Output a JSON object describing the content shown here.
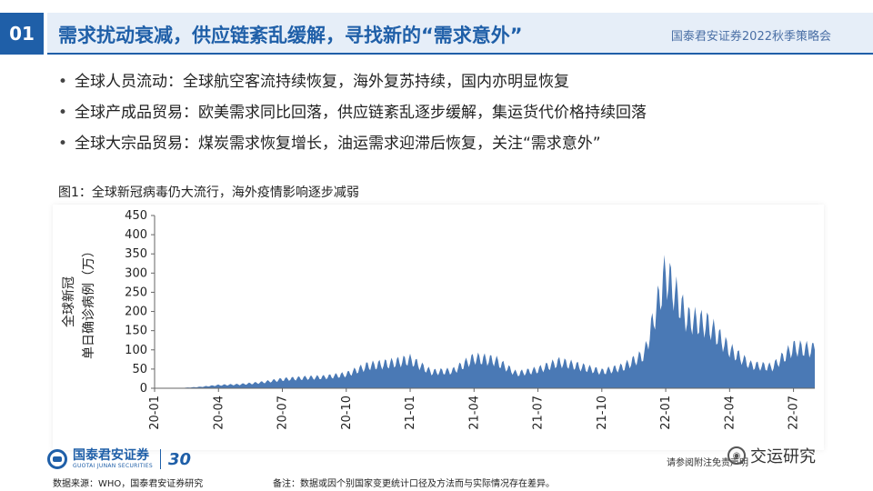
{
  "header": {
    "section_number": "01",
    "title": "需求扰动衰减，供应链紊乱缓解，寻找新的“需求意外”",
    "brand": "国泰君安证券2022秋季策略会"
  },
  "bullets": [
    "全球人员流动：全球航空客流持续恢复，海外复苏持续，国内亦明显恢复",
    "全球产成品贸易：欧美需求同比回落，供应链紊乱逐步缓解，集运货代价格持续回落",
    "全球大宗品贸易：煤炭需求恢复增长，油运需求迎滞后恢复，关注“需求意外”"
  ],
  "figure_title": "图1：全球新冠病毒仍大流行，海外疫情影响逐步减弱",
  "chart_data": {
    "type": "area",
    "color": "#4a79b5",
    "ylabel_line1": "全球新冠",
    "ylabel_line2": "单日确诊病例（万）",
    "ylim": [
      0,
      450
    ],
    "yticks": [
      0,
      50,
      100,
      150,
      200,
      250,
      300,
      350,
      400,
      450
    ],
    "x_start": "2020-01",
    "x_end": "2022-08",
    "xticks": [
      "20-01",
      "20-04",
      "20-07",
      "20-10",
      "21-01",
      "21-04",
      "21-07",
      "21-10",
      "22-01",
      "22-04",
      "22-07"
    ],
    "x": [
      "2020-01",
      "2020-02",
      "2020-03",
      "2020-04",
      "2020-05",
      "2020-06",
      "2020-07",
      "2020-08",
      "2020-09",
      "2020-10",
      "2020-11",
      "2020-12",
      "2021-01",
      "2021-02",
      "2021-03",
      "2021-04",
      "2021-05",
      "2021-06",
      "2021-07",
      "2021-08",
      "2021-09",
      "2021-10",
      "2021-11",
      "2021-12",
      "2022-01",
      "2022-02",
      "2022-03",
      "2022-04",
      "2022-05",
      "2022-06",
      "2022-07",
      "2022-08"
    ],
    "values": [
      0,
      0.2,
      3,
      8,
      10,
      15,
      23,
      27,
      29,
      36,
      58,
      64,
      74,
      42,
      45,
      78,
      72,
      38,
      48,
      68,
      56,
      43,
      55,
      88,
      300,
      180,
      165,
      100,
      60,
      55,
      105,
      100
    ]
  },
  "footer": {
    "logo_cn": "国泰君安证券",
    "logo_en": "GUOTAI JUNAN SECURITIES",
    "logo_30": "30",
    "source": "数据来源：WHO，国泰君安证券研究",
    "note": "备注：数据或因个别国家变更统计口径及方法而与实际情况存在差异。",
    "disclaimer": "请参阅附注免责声明",
    "watermark": "交运研究",
    "watermark_icon": "eye-icon"
  }
}
